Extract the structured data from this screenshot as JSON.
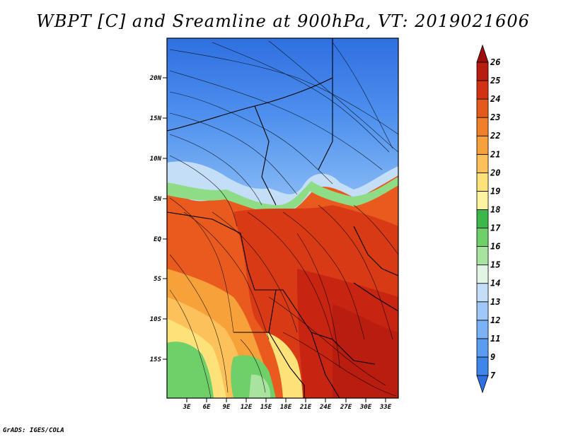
{
  "title": "WBPT [C] and Sreamline at 900hPa, VT: 2019021606",
  "credit": "GrADS: IGES/COLA",
  "map": {
    "lat_ticks": [
      "20N",
      "15N",
      "10N",
      "5N",
      "EQ",
      "5S",
      "10S",
      "15S"
    ],
    "lon_ticks": [
      "3E",
      "6E",
      "9E",
      "12E",
      "15E",
      "18E",
      "21E",
      "24E",
      "27E",
      "30E",
      "33E"
    ]
  },
  "colorbar": {
    "labels": [
      "7",
      "9",
      "11",
      "12",
      "13",
      "14",
      "15",
      "16",
      "17",
      "18",
      "19",
      "20",
      "21",
      "22",
      "23",
      "24",
      "25",
      "26"
    ],
    "colors": [
      "#2f6fe0",
      "#3f86ea",
      "#5a9cf0",
      "#7bb2f5",
      "#9fc8f8",
      "#c4def8",
      "#e2f5e5",
      "#a8e3a0",
      "#6fd06a",
      "#3cb84a",
      "#fdf3a0",
      "#fde27a",
      "#fcc15a",
      "#f7a13a",
      "#f07f2a",
      "#e45a1c",
      "#d23214",
      "#b81d10",
      "#9c0f0a"
    ]
  }
}
